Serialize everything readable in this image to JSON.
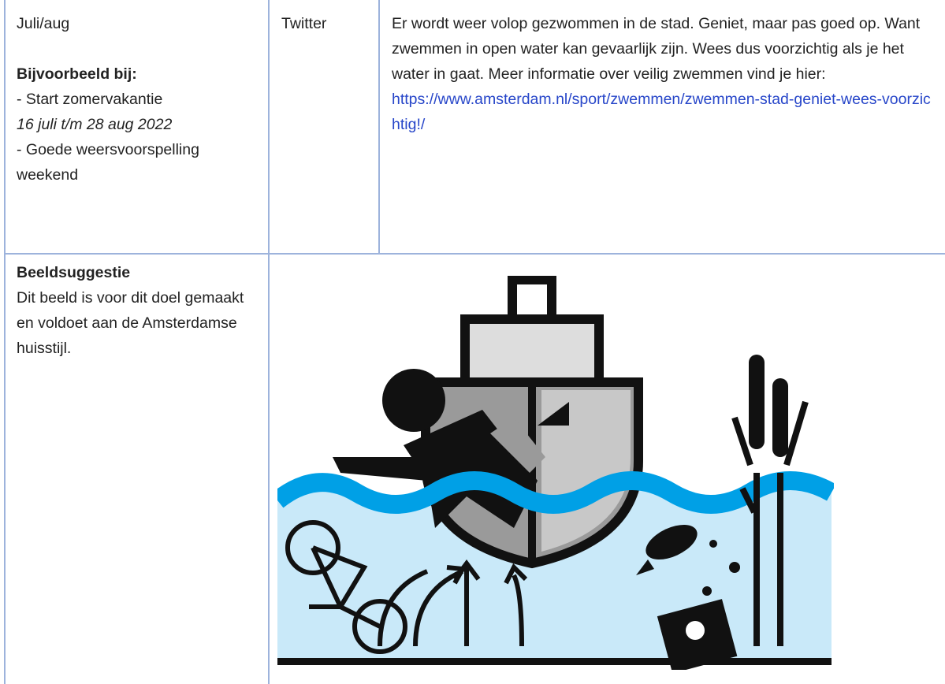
{
  "table": {
    "rows": [
      {
        "date": "Juli/aug",
        "example_heading": "Bijvoorbeeld bij:",
        "examples": [
          "- Start zomervakantie",
          "16 juli t/m 28 aug 2022",
          "- Goede weersvoorspelling weekend"
        ],
        "channel": "Twitter",
        "message": "Er wordt weer volop gezwommen in de stad. Geniet, maar pas goed op. Want zwemmen in open water kan gevaarlijk zijn. Wees dus voorzichtig als je het water in gaat. Meer informatie over veilig zwemmen vind je hier:",
        "link": "https://www.amsterdam.nl/sport/zwemmen/zwemmen-stad-geniet-wees-voorzichtig!/"
      },
      {
        "heading": "Beeldsuggestie",
        "text": "Dit beeld is voor dit doel gemaakt en voldoet aan de Amsterdamse huisstijl."
      }
    ]
  }
}
